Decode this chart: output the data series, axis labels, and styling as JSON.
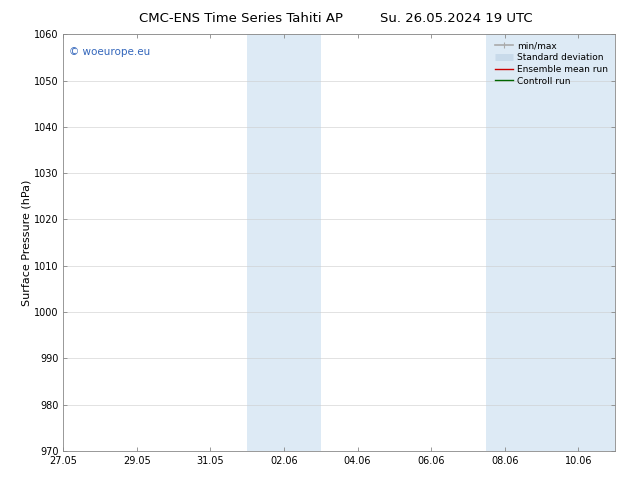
{
  "title_left": "CMC-ENS Time Series Tahiti AP",
  "title_right": "Su. 26.05.2024 19 UTC",
  "ylabel": "Surface Pressure (hPa)",
  "ylim": [
    970,
    1060
  ],
  "yticks": [
    970,
    980,
    990,
    1000,
    1010,
    1020,
    1030,
    1040,
    1050,
    1060
  ],
  "xtick_labels": [
    "27.05",
    "29.05",
    "31.05",
    "02.06",
    "04.06",
    "06.06",
    "08.06",
    "10.06"
  ],
  "xtick_positions": [
    0,
    2,
    4,
    6,
    8,
    10,
    12,
    14
  ],
  "xlim": [
    0,
    15
  ],
  "shaded_bands": [
    {
      "start": 5.0,
      "end": 7.0
    },
    {
      "start": 11.5,
      "end": 15.0
    }
  ],
  "shaded_color": "#ddeaf5",
  "background_color": "#ffffff",
  "watermark_text": "© woeurope.eu",
  "watermark_color": "#3366bb",
  "legend_items": [
    {
      "label": "min/max",
      "color": "#aaaaaa",
      "lw": 1.2
    },
    {
      "label": "Standard deviation",
      "color": "#c8daea",
      "lw": 5
    },
    {
      "label": "Ensemble mean run",
      "color": "#cc0000",
      "lw": 1.0
    },
    {
      "label": "Controll run",
      "color": "#006600",
      "lw": 1.0
    }
  ],
  "tick_label_fontsize": 7,
  "title_fontsize": 9.5,
  "ylabel_fontsize": 8,
  "fig_width": 6.34,
  "fig_height": 4.9,
  "dpi": 100
}
